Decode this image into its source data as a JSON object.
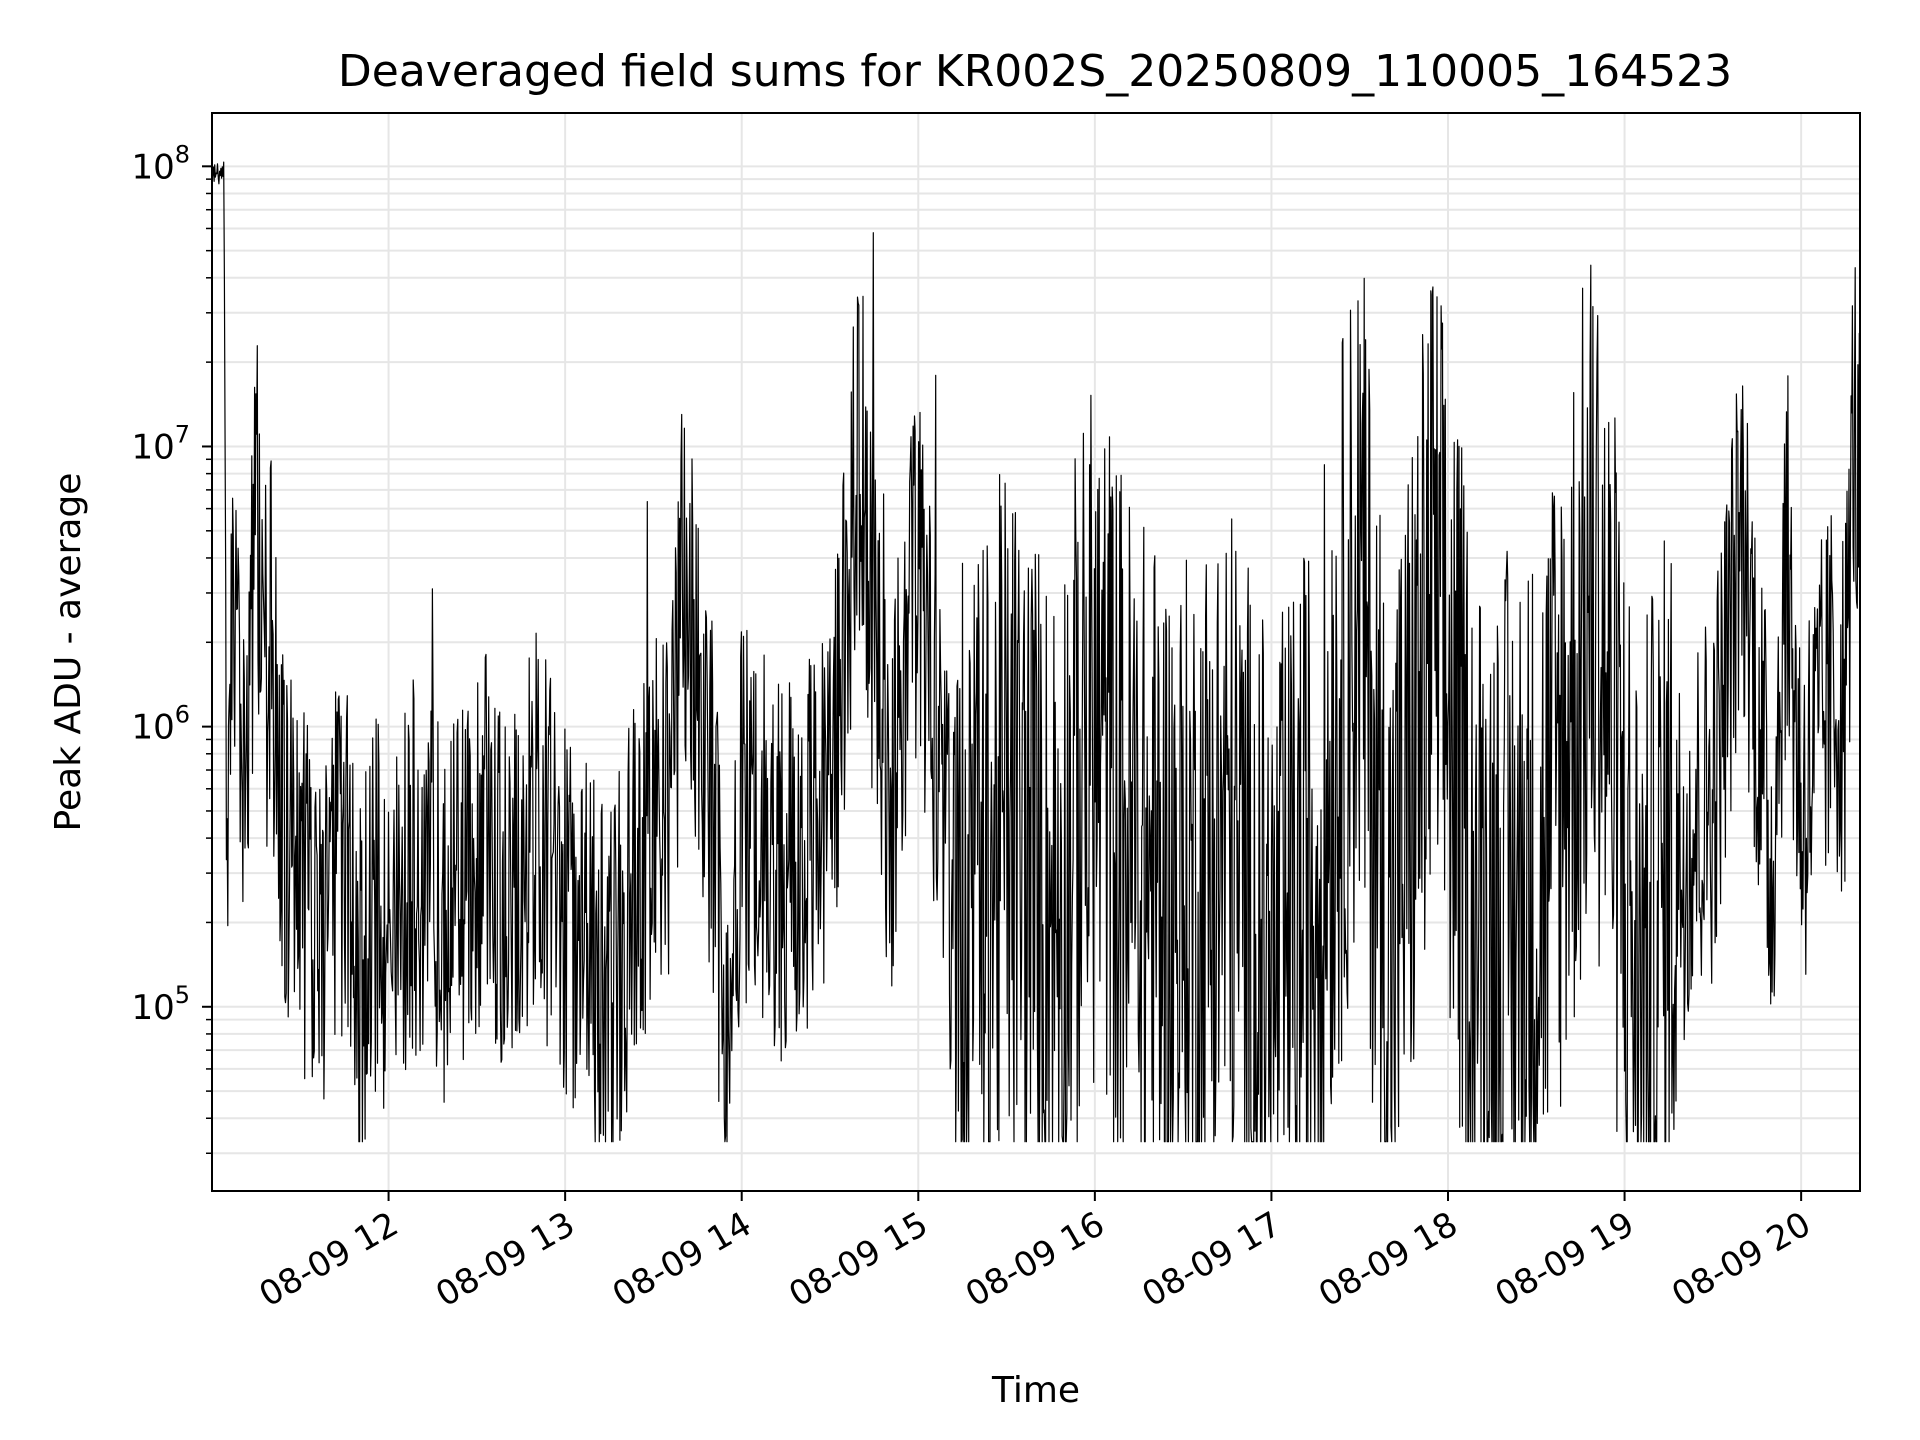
{
  "chart_data": {
    "type": "line",
    "title": "Deaveraged field sums for KR002S_20250809_110005_164523",
    "xlabel": "Time",
    "ylabel": "Peak ADU - average",
    "x_unit": "hour of 2025-08-09",
    "xlim": [
      "2025-08-09 11:00",
      "2025-08-09 20:20"
    ],
    "ylim": [
      22000,
      155000000
    ],
    "y_scale": "log",
    "grid": true,
    "grid_minor_y": true,
    "legend": "none",
    "line_color": "#000000",
    "grid_color": "#e6e6e6",
    "x_ticks": [
      {
        "hour": 12,
        "label": "08-09 12"
      },
      {
        "hour": 13,
        "label": "08-09 13"
      },
      {
        "hour": 14,
        "label": "08-09 14"
      },
      {
        "hour": 15,
        "label": "08-09 15"
      },
      {
        "hour": 16,
        "label": "08-09 16"
      },
      {
        "hour": 17,
        "label": "08-09 17"
      },
      {
        "hour": 18,
        "label": "08-09 18"
      },
      {
        "hour": 19,
        "label": "08-09 19"
      },
      {
        "hour": 20,
        "label": "08-09 20"
      }
    ],
    "y_ticks": [
      {
        "value": 100000,
        "base": "10",
        "exp": "5"
      },
      {
        "value": 1000000,
        "base": "10",
        "exp": "6"
      },
      {
        "value": 10000000,
        "base": "10",
        "exp": "7"
      },
      {
        "value": 100000000,
        "base": "10",
        "exp": "8"
      }
    ],
    "series": [
      {
        "points": [
          [
            "2025-08-09 11:00",
            90000000
          ],
          [
            "2025-08-09 11:02",
            95000000
          ],
          [
            "2025-08-09 11:04",
            100000000
          ],
          [
            "2025-08-09 11:05",
            700000
          ],
          [
            "2025-08-09 11:08",
            2500000
          ],
          [
            "2025-08-09 11:10",
            1000000
          ],
          [
            "2025-08-09 11:13",
            2000000
          ],
          [
            "2025-08-09 11:15",
            8000000
          ],
          [
            "2025-08-09 11:17",
            1500000
          ],
          [
            "2025-08-09 11:20",
            2000000
          ],
          [
            "2025-08-09 11:25",
            500000
          ],
          [
            "2025-08-09 11:30",
            300000
          ],
          [
            "2025-08-09 11:35",
            150000
          ],
          [
            "2025-08-09 11:45",
            400000
          ],
          [
            "2025-08-09 11:50",
            100000
          ],
          [
            "2025-08-09 11:55",
            250000
          ],
          [
            "2025-08-09 12:00",
            150000
          ],
          [
            "2025-08-09 12:10",
            350000
          ],
          [
            "2025-08-09 12:20",
            200000
          ],
          [
            "2025-08-09 12:30",
            400000
          ],
          [
            "2025-08-09 12:40",
            300000
          ],
          [
            "2025-08-09 12:50",
            450000
          ],
          [
            "2025-08-09 13:00",
            250000
          ],
          [
            "2025-08-09 13:15",
            100000
          ],
          [
            "2025-08-09 13:25",
            350000
          ],
          [
            "2025-08-09 13:35",
            500000
          ],
          [
            "2025-08-09 13:40",
            3000000
          ],
          [
            "2025-08-09 13:50",
            600000
          ],
          [
            "2025-08-09 13:55",
            40000
          ],
          [
            "2025-08-09 14:00",
            500000
          ],
          [
            "2025-08-09 14:15",
            300000
          ],
          [
            "2025-08-09 14:30",
            500000
          ],
          [
            "2025-08-09 14:40",
            10500000
          ],
          [
            "2025-08-09 14:50",
            400000
          ],
          [
            "2025-08-09 15:00",
            4500000
          ],
          [
            "2025-08-09 15:10",
            300000
          ],
          [
            "2025-08-09 15:20",
            200000
          ],
          [
            "2025-08-09 15:30",
            500000
          ],
          [
            "2025-08-09 15:45",
            200000
          ],
          [
            "2025-08-09 16:00",
            1000000
          ],
          [
            "2025-08-09 16:15",
            300000
          ],
          [
            "2025-08-09 16:30",
            200000
          ],
          [
            "2025-08-09 16:45",
            400000
          ],
          [
            "2025-08-09 17:00",
            100000
          ],
          [
            "2025-08-09 17:15",
            300000
          ],
          [
            "2025-08-09 17:30",
            3400000
          ],
          [
            "2025-08-09 17:40",
            150000
          ],
          [
            "2025-08-09 17:55",
            3000000
          ],
          [
            "2025-08-09 18:10",
            200000
          ],
          [
            "2025-08-09 18:30",
            250000
          ],
          [
            "2025-08-09 18:50",
            3500000
          ],
          [
            "2025-08-09 19:05",
            100000
          ],
          [
            "2025-08-09 19:15",
            300000
          ],
          [
            "2025-08-09 19:30",
            600000
          ],
          [
            "2025-08-09 19:40",
            5500000
          ],
          [
            "2025-08-09 19:50",
            300000
          ],
          [
            "2025-08-09 19:55",
            4500000
          ],
          [
            "2025-08-09 20:00",
            500000
          ],
          [
            "2025-08-09 20:10",
            1300000
          ],
          [
            "2025-08-09 20:15",
            1200000
          ],
          [
            "2025-08-09 20:18",
            14000000
          ],
          [
            "2025-08-09 20:20",
            5000000
          ]
        ]
      }
    ]
  }
}
